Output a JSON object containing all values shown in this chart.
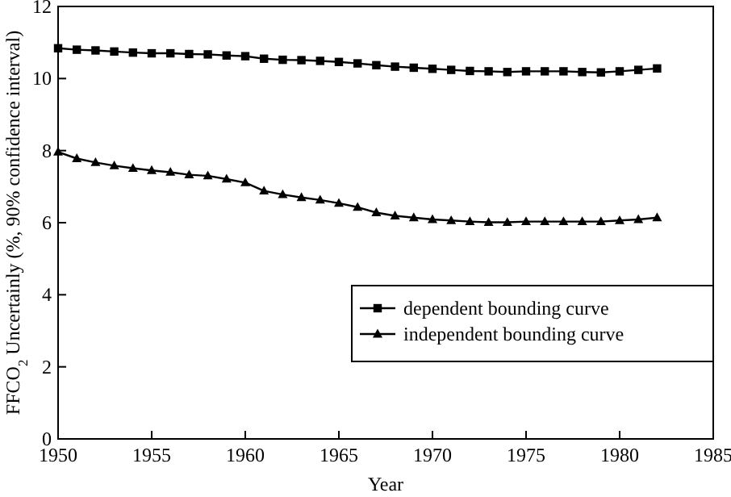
{
  "chart_data": {
    "type": "line",
    "xlabel": "Year",
    "ylabel": "FFCO$_{2}$ Uncertainly (%, 90% confidence interval)",
    "x": [
      1950,
      1951,
      1952,
      1953,
      1954,
      1955,
      1956,
      1957,
      1958,
      1959,
      1960,
      1961,
      1962,
      1963,
      1964,
      1965,
      1966,
      1967,
      1968,
      1969,
      1970,
      1971,
      1972,
      1973,
      1974,
      1975,
      1976,
      1977,
      1978,
      1979,
      1980,
      1981,
      1982
    ],
    "xlim": [
      1950,
      1985
    ],
    "xticks": [
      1950,
      1955,
      1960,
      1965,
      1970,
      1975,
      1980,
      1985
    ],
    "ylim": [
      0,
      12
    ],
    "yticks": [
      0,
      2,
      4,
      6,
      8,
      10,
      12
    ],
    "legend": "right",
    "grid": false,
    "series": [
      {
        "name": "dependent bounding curve",
        "color": "#000000",
        "marker": "square",
        "values": [
          10.84,
          10.8,
          10.78,
          10.75,
          10.72,
          10.7,
          10.7,
          10.68,
          10.67,
          10.64,
          10.62,
          10.55,
          10.52,
          10.51,
          10.49,
          10.46,
          10.42,
          10.37,
          10.33,
          10.3,
          10.27,
          10.24,
          10.21,
          10.2,
          10.18,
          10.2,
          10.2,
          10.2,
          10.18,
          10.17,
          10.2,
          10.24,
          10.28
        ]
      },
      {
        "name": "independent bounding curve",
        "color": "#000000",
        "marker": "triangle",
        "values": [
          7.96,
          7.78,
          7.67,
          7.58,
          7.51,
          7.45,
          7.4,
          7.33,
          7.3,
          7.21,
          7.11,
          6.88,
          6.78,
          6.7,
          6.63,
          6.54,
          6.43,
          6.28,
          6.19,
          6.14,
          6.09,
          6.06,
          6.03,
          6.01,
          6.01,
          6.03,
          6.03,
          6.03,
          6.03,
          6.03,
          6.06,
          6.09,
          6.14
        ]
      }
    ]
  }
}
